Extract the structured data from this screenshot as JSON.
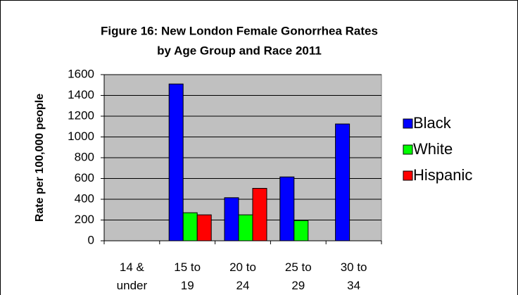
{
  "chart_data": {
    "type": "bar",
    "title": [
      "Figure 16: New London Female Gonorrhea Rates",
      "by Age Group and Race 2011"
    ],
    "y_label": "Rate per 100,000 people",
    "categories": [
      "14 & under",
      "15 to 19",
      "20 to 24",
      "25 to 29",
      "30 to 34"
    ],
    "series": [
      {
        "name": "Black",
        "color": "#0000ff",
        "values": [
          null,
          1510,
          415,
          615,
          1125
        ]
      },
      {
        "name": "White",
        "color": "#00ff00",
        "values": [
          null,
          270,
          250,
          195,
          null
        ]
      },
      {
        "name": "Hispanic",
        "color": "#ff0000",
        "values": [
          null,
          250,
          505,
          null,
          null
        ]
      }
    ],
    "ylim": [
      0,
      1600
    ],
    "yticks": [
      0,
      200,
      400,
      600,
      800,
      1000,
      1200,
      1400,
      1600
    ],
    "grid": true,
    "legend": "right"
  }
}
